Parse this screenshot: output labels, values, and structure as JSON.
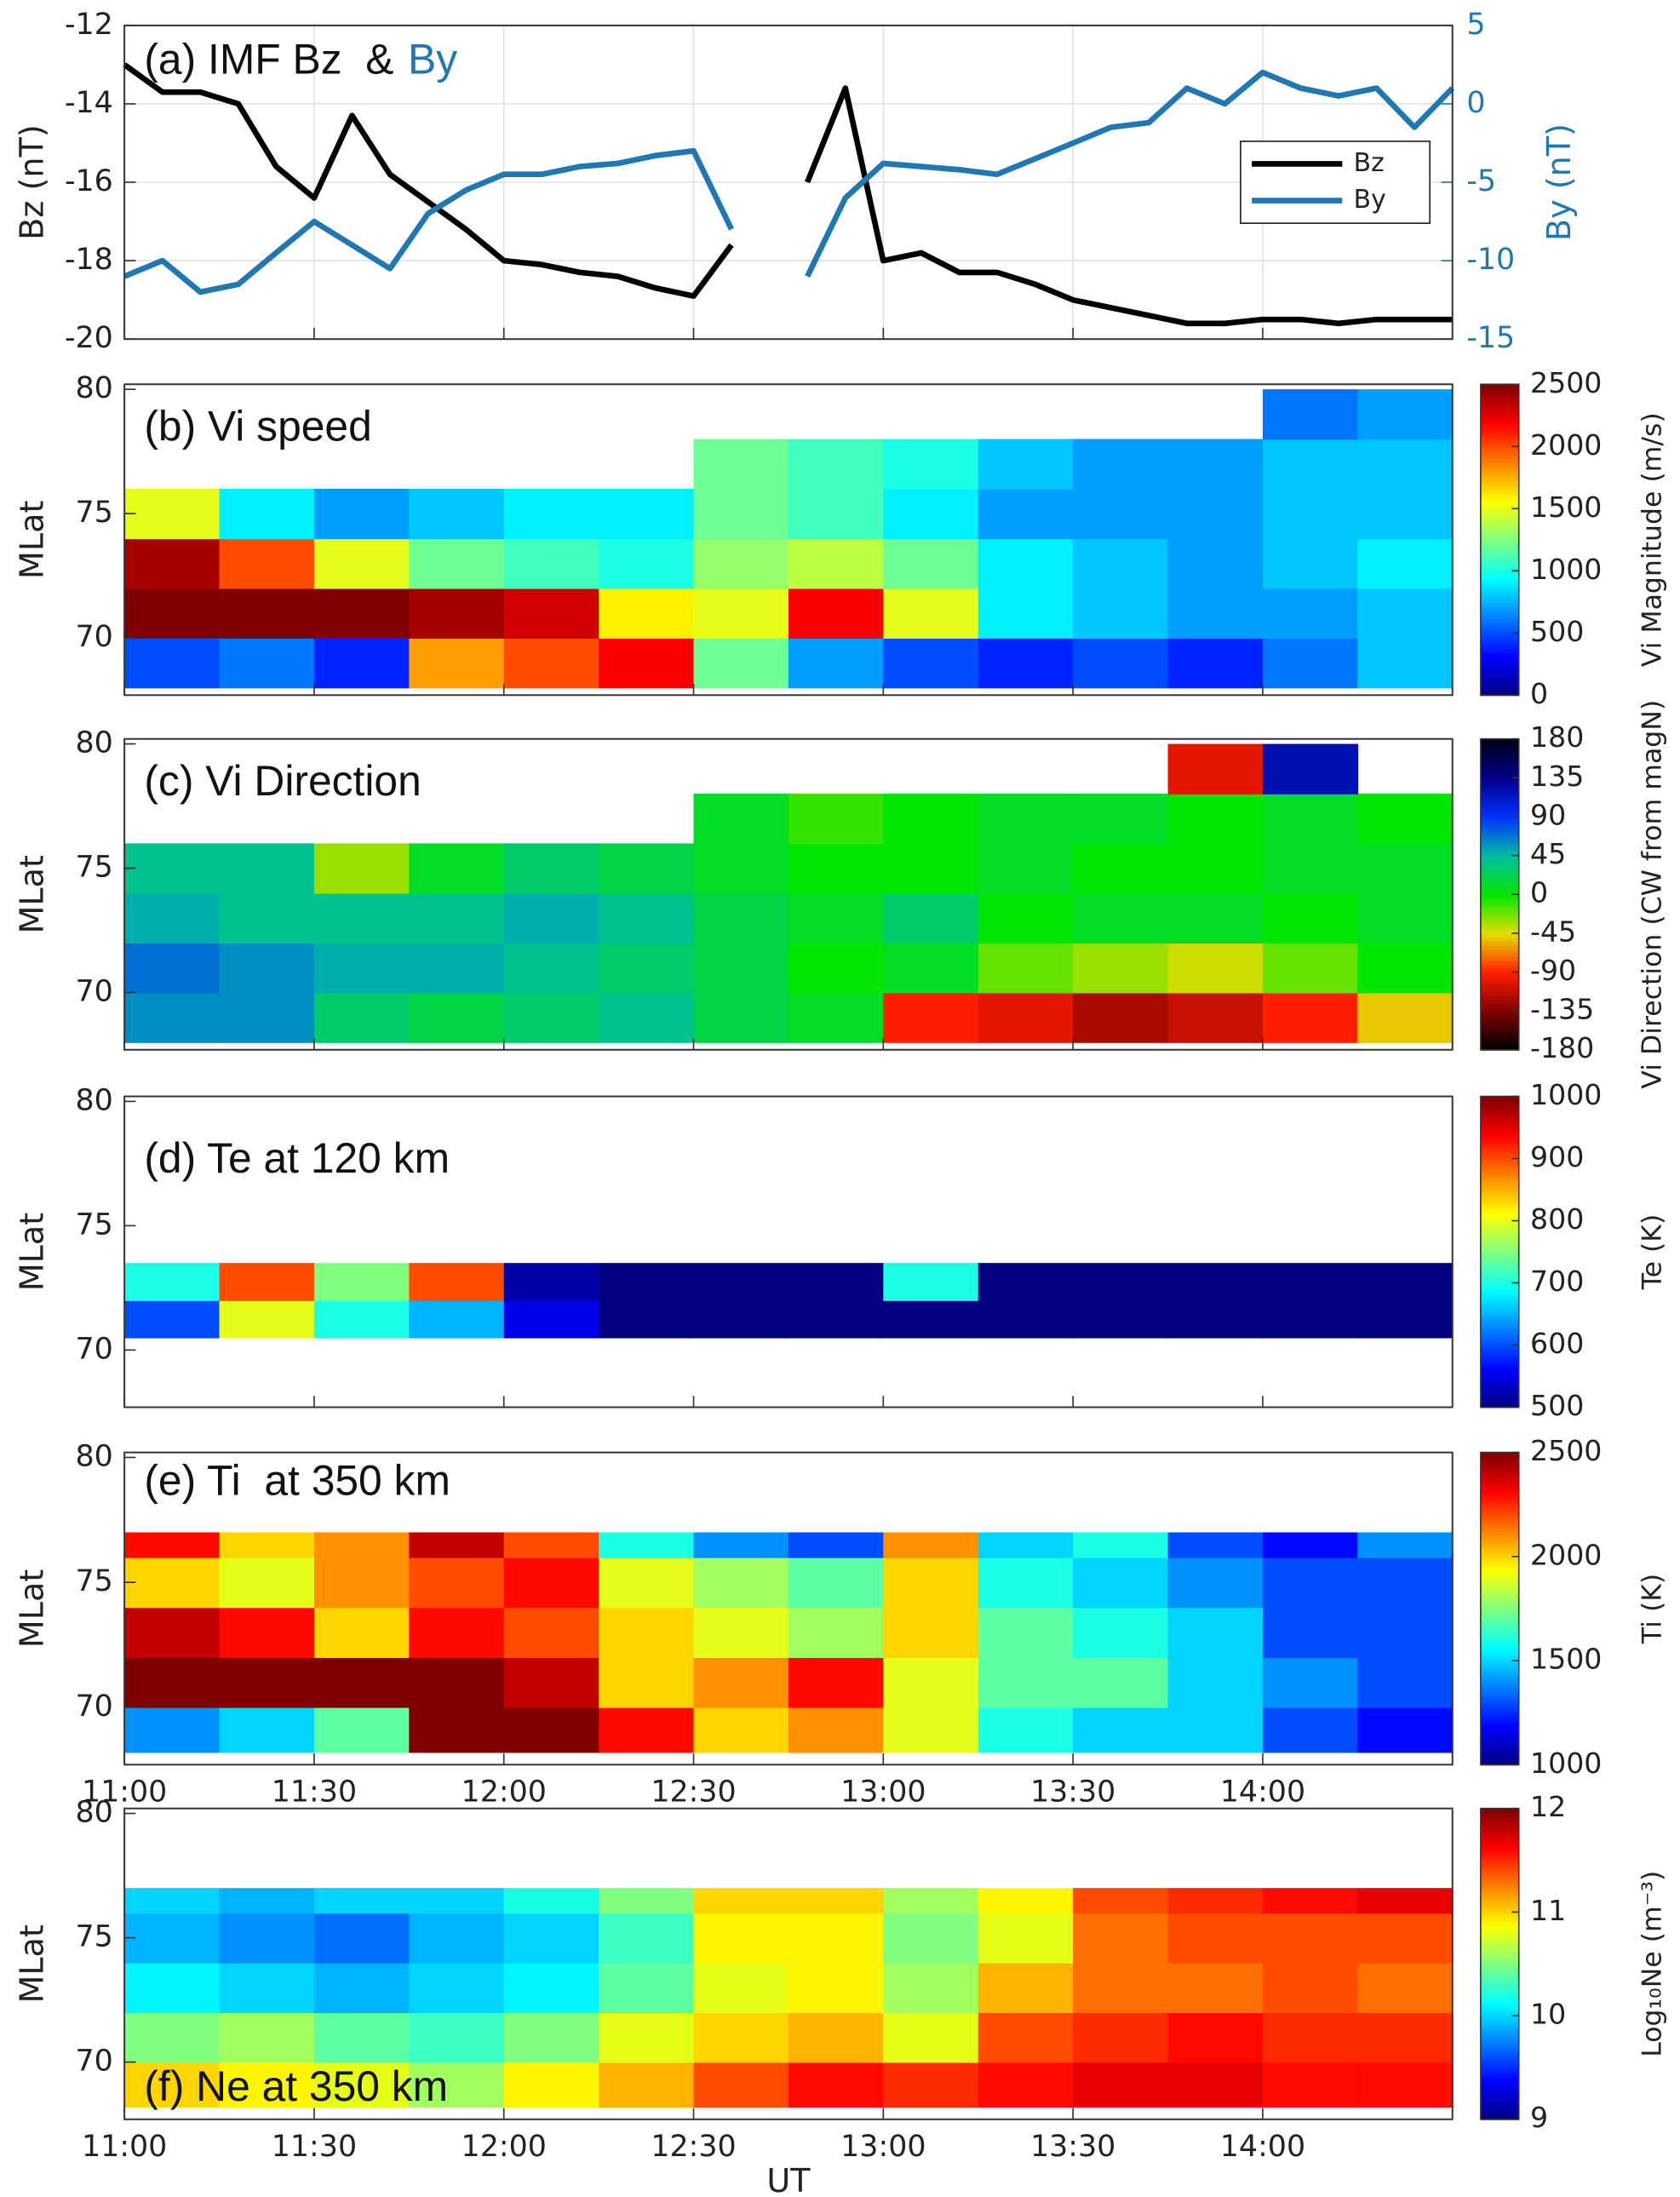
{
  "chart_data": [
    {
      "type": "line",
      "title": "(a) IMF Bz  &",
      "title_highlight": "By",
      "ylabel": "Bz (nT)",
      "y2label": "By (nT)",
      "xlim": [
        11,
        14.5
      ],
      "xticks": [
        11,
        11.5,
        12,
        12.5,
        13,
        13.5,
        14
      ],
      "ylim": [
        -20,
        -12
      ],
      "yticks": [
        -20,
        -18,
        -16,
        -14,
        -12
      ],
      "y2lim": [
        -15,
        5
      ],
      "y2ticks": [
        -15,
        -10,
        -5,
        0,
        5
      ],
      "grid": true,
      "legend": "upper right",
      "x": [
        11.0,
        11.1,
        11.2,
        11.3,
        11.4,
        11.5,
        11.6,
        11.7,
        11.8,
        11.9,
        12.0,
        12.1,
        12.2,
        12.3,
        12.4,
        12.5,
        12.6,
        12.7,
        12.8,
        12.9,
        13.0,
        13.1,
        13.2,
        13.3,
        13.4,
        13.5,
        13.6,
        13.7,
        13.8,
        13.9,
        14.0,
        14.1,
        14.2,
        14.3,
        14.4,
        14.5
      ],
      "series": [
        {
          "name": "Bz",
          "color": "#000000",
          "values": [
            -13.0,
            -13.7,
            -13.7,
            -14.0,
            -15.6,
            -16.4,
            -14.3,
            -15.8,
            -16.5,
            -17.2,
            -18.0,
            -18.1,
            -18.3,
            -18.4,
            -18.7,
            -18.9,
            -17.6,
            null,
            -16.0,
            -13.6,
            -18.0,
            -17.8,
            -18.3,
            -18.3,
            -18.6,
            -19.0,
            -19.2,
            -19.4,
            -19.6,
            -19.6,
            -19.5,
            -19.5,
            -19.6,
            -19.5,
            -19.5,
            -19.5
          ]
        },
        {
          "name": "By",
          "color": "#1f77b4",
          "axis": "y2",
          "values": [
            -11,
            -10,
            -12,
            -11.5,
            -9.5,
            -7.5,
            -9,
            -10.5,
            -7,
            -5.5,
            -4.5,
            -4.5,
            -4,
            -3.8,
            -3.3,
            -3,
            -8,
            null,
            -11,
            -6,
            -3.8,
            -4,
            -4.2,
            -4.5,
            -3.5,
            -2.5,
            -1.5,
            -1.2,
            1,
            0,
            2,
            1,
            0.5,
            1,
            -1.5,
            1
          ]
        }
      ]
    },
    {
      "type": "heatmap",
      "title": "(b) Vi speed",
      "ylabel": "MLat",
      "zlabel": "Vi Magnitude (m/s)",
      "colormap": "jet",
      "xlim": [
        11,
        14.5
      ],
      "xticks": [
        11,
        11.5,
        12,
        12.5,
        13,
        13.5,
        14
      ],
      "ylim": [
        67.7,
        80.2
      ],
      "yticks": [
        70,
        75,
        80
      ],
      "zlim": [
        0,
        2500
      ],
      "zticks": [
        0,
        500,
        1000,
        1500,
        2000,
        2500
      ],
      "x_edges": [
        11,
        11.25,
        11.5,
        11.75,
        12,
        12.25,
        12.5,
        12.75,
        13,
        13.25,
        13.5,
        13.75,
        14,
        14.25,
        14.5
      ],
      "y_edges": [
        68,
        70,
        72,
        74,
        76,
        78,
        80
      ],
      "values": [
        [
          500,
          600,
          400,
          1800,
          2000,
          2200,
          1200,
          700,
          500,
          400,
          500,
          400,
          600,
          800
        ],
        [
          2500,
          2500,
          2500,
          2400,
          2300,
          1600,
          1500,
          2200,
          1500,
          900,
          800,
          700,
          700,
          800
        ],
        [
          2400,
          2000,
          1500,
          1200,
          1100,
          1000,
          1300,
          1400,
          1200,
          900,
          800,
          700,
          800,
          900
        ],
        [
          1500,
          900,
          700,
          800,
          900,
          900,
          1200,
          1100,
          900,
          700,
          700,
          700,
          800,
          800
        ],
        [
          null,
          null,
          null,
          null,
          null,
          null,
          1200,
          1100,
          1000,
          800,
          700,
          700,
          800,
          800
        ],
        [
          null,
          null,
          null,
          null,
          null,
          null,
          null,
          null,
          null,
          null,
          null,
          null,
          600,
          700
        ]
      ]
    },
    {
      "type": "heatmap",
      "title": "(c) Vi Direction",
      "ylabel": "MLat",
      "zlabel": "Vi Direction (CW from magN)",
      "colormap": "cyclic",
      "xlim": [
        11,
        14.5
      ],
      "xticks": [
        11,
        11.5,
        12,
        12.5,
        13,
        13.5,
        14
      ],
      "ylim": [
        67.7,
        80.2
      ],
      "yticks": [
        70,
        75,
        80
      ],
      "zlim": [
        -180,
        180
      ],
      "zticks": [
        -180,
        -135,
        -90,
        -45,
        0,
        45,
        90,
        135,
        180
      ],
      "x_edges": [
        11,
        11.25,
        11.5,
        11.75,
        12,
        12.25,
        12.5,
        12.75,
        13,
        13.25,
        13.5,
        13.75,
        14,
        14.25,
        14.5
      ],
      "y_edges": [
        68,
        70,
        72,
        74,
        76,
        78,
        80
      ],
      "values": [
        [
          60,
          60,
          30,
          20,
          30,
          40,
          20,
          10,
          -90,
          -100,
          -120,
          -110,
          -90,
          -50
        ],
        [
          70,
          60,
          50,
          50,
          40,
          30,
          20,
          0,
          10,
          -20,
          -30,
          -40,
          -20,
          0
        ],
        [
          50,
          40,
          40,
          40,
          50,
          40,
          20,
          10,
          30,
          0,
          10,
          10,
          0,
          10
        ],
        [
          40,
          40,
          -30,
          10,
          30,
          20,
          10,
          0,
          0,
          10,
          0,
          0,
          10,
          10
        ],
        [
          null,
          null,
          null,
          null,
          null,
          null,
          10,
          -10,
          0,
          10,
          10,
          0,
          10,
          0
        ],
        [
          null,
          null,
          null,
          null,
          null,
          null,
          null,
          null,
          null,
          null,
          null,
          -100,
          120,
          null
        ]
      ]
    },
    {
      "type": "heatmap",
      "title": "(d) Te at 120 km",
      "ylabel": "MLat",
      "zlabel": "Te (K)",
      "colormap": "jet",
      "xlim": [
        11,
        14.5
      ],
      "xticks": [
        11,
        11.5,
        12,
        12.5,
        13,
        13.5,
        14
      ],
      "ylim": [
        67.7,
        80.2
      ],
      "yticks": [
        70,
        75,
        80
      ],
      "zlim": [
        500,
        1000
      ],
      "zticks": [
        500,
        600,
        700,
        800,
        900,
        1000
      ],
      "x_edges": [
        11,
        11.25,
        11.5,
        11.75,
        12,
        12.25,
        12.5,
        12.75,
        13,
        13.25,
        13.5,
        13.75,
        14,
        14.25,
        14.5
      ],
      "y_edges": [
        70.5,
        72,
        73.5
      ],
      "values": [
        [
          600,
          800,
          700,
          650,
          550,
          500,
          500,
          500,
          500,
          500,
          500,
          500,
          500,
          500
        ],
        [
          700,
          900,
          750,
          900,
          520,
          500,
          500,
          500,
          700,
          500,
          500,
          500,
          500,
          500
        ]
      ]
    },
    {
      "type": "heatmap",
      "title": "(e) Ti  at 350 km",
      "ylabel": "MLat",
      "zlabel": "Ti (K)",
      "colormap": "jet",
      "xlim": [
        11,
        14.5
      ],
      "xticks": [
        {
          "value": 11,
          "label": "11:00"
        },
        {
          "value": 11.5,
          "label": "11:30"
        },
        {
          "value": 12,
          "label": "12:00"
        },
        {
          "value": 12.5,
          "label": "12:30"
        },
        {
          "value": 13,
          "label": "13:00"
        },
        {
          "value": 13.5,
          "label": "13:30"
        },
        {
          "value": 14,
          "label": "14:00"
        }
      ],
      "ylim": [
        67.7,
        80.2
      ],
      "yticks": [
        70,
        75,
        80
      ],
      "zlim": [
        1000,
        2500
      ],
      "zticks": [
        1000,
        1500,
        2000,
        2500
      ],
      "x_edges": [
        11,
        11.25,
        11.5,
        11.75,
        12,
        12.25,
        12.5,
        12.75,
        13,
        13.25,
        13.5,
        13.75,
        14,
        14.25,
        14.5
      ],
      "y_edges": [
        68.2,
        70,
        72,
        74,
        76,
        77
      ],
      "values": [
        [
          1400,
          1500,
          1700,
          2500,
          2500,
          2300,
          2000,
          2100,
          1900,
          1600,
          1500,
          1500,
          1300,
          1200
        ],
        [
          2500,
          2500,
          2500,
          2500,
          2400,
          2000,
          2100,
          2300,
          1900,
          1700,
          1700,
          1500,
          1400,
          1300
        ],
        [
          2400,
          2300,
          2000,
          2300,
          2200,
          2000,
          1900,
          1800,
          2000,
          1700,
          1600,
          1500,
          1300,
          1300
        ],
        [
          2000,
          1900,
          2100,
          2200,
          2300,
          1900,
          1800,
          1700,
          2000,
          1600,
          1500,
          1400,
          1300,
          1300
        ],
        [
          2300,
          2000,
          2100,
          2400,
          2200,
          1600,
          1400,
          1300,
          2100,
          1500,
          1600,
          1300,
          1200,
          1400
        ]
      ]
    },
    {
      "type": "heatmap",
      "title": "(f) Ne at 350 km",
      "ylabel": "MLat",
      "xlabel": "UT",
      "zlabel": "Log₁₀Ne (m⁻³)",
      "colormap": "jet",
      "xlim": [
        11,
        14.5
      ],
      "xticks": [
        {
          "value": 11,
          "label": "11:00"
        },
        {
          "value": 11.5,
          "label": "11:30"
        },
        {
          "value": 12,
          "label": "12:00"
        },
        {
          "value": 12.5,
          "label": "12:30"
        },
        {
          "value": 13,
          "label": "13:00"
        },
        {
          "value": 13.5,
          "label": "13:30"
        },
        {
          "value": 14,
          "label": "14:00"
        }
      ],
      "ylim": [
        67.7,
        80.2
      ],
      "yticks": [
        70,
        75,
        80
      ],
      "zlim": [
        9,
        12
      ],
      "zticks": [
        9,
        10,
        11,
        12
      ],
      "x_edges": [
        11,
        11.25,
        11.5,
        11.75,
        12,
        12.25,
        12.5,
        12.75,
        13,
        13.25,
        13.5,
        13.75,
        14,
        14.25,
        14.5
      ],
      "y_edges": [
        68.2,
        70,
        72,
        74,
        76,
        77
      ],
      "values": [
        [
          11.0,
          10.9,
          10.8,
          10.6,
          10.9,
          11.1,
          11.4,
          11.6,
          11.5,
          11.6,
          11.7,
          11.7,
          11.6,
          11.6
        ],
        [
          10.5,
          10.6,
          10.4,
          10.3,
          10.5,
          10.8,
          11.0,
          11.1,
          10.8,
          11.4,
          11.5,
          11.6,
          11.5,
          11.5
        ],
        [
          10.1,
          10.0,
          9.9,
          10.0,
          10.1,
          10.4,
          10.8,
          10.9,
          10.6,
          11.1,
          11.3,
          11.3,
          11.4,
          11.3
        ],
        [
          9.9,
          9.8,
          9.7,
          9.9,
          10.0,
          10.3,
          10.9,
          10.9,
          10.5,
          10.8,
          11.3,
          11.4,
          11.4,
          11.4
        ],
        [
          10.0,
          9.9,
          10.0,
          10.0,
          10.2,
          10.5,
          11.0,
          11.0,
          10.6,
          10.9,
          11.4,
          11.5,
          11.6,
          11.7
        ]
      ]
    }
  ]
}
